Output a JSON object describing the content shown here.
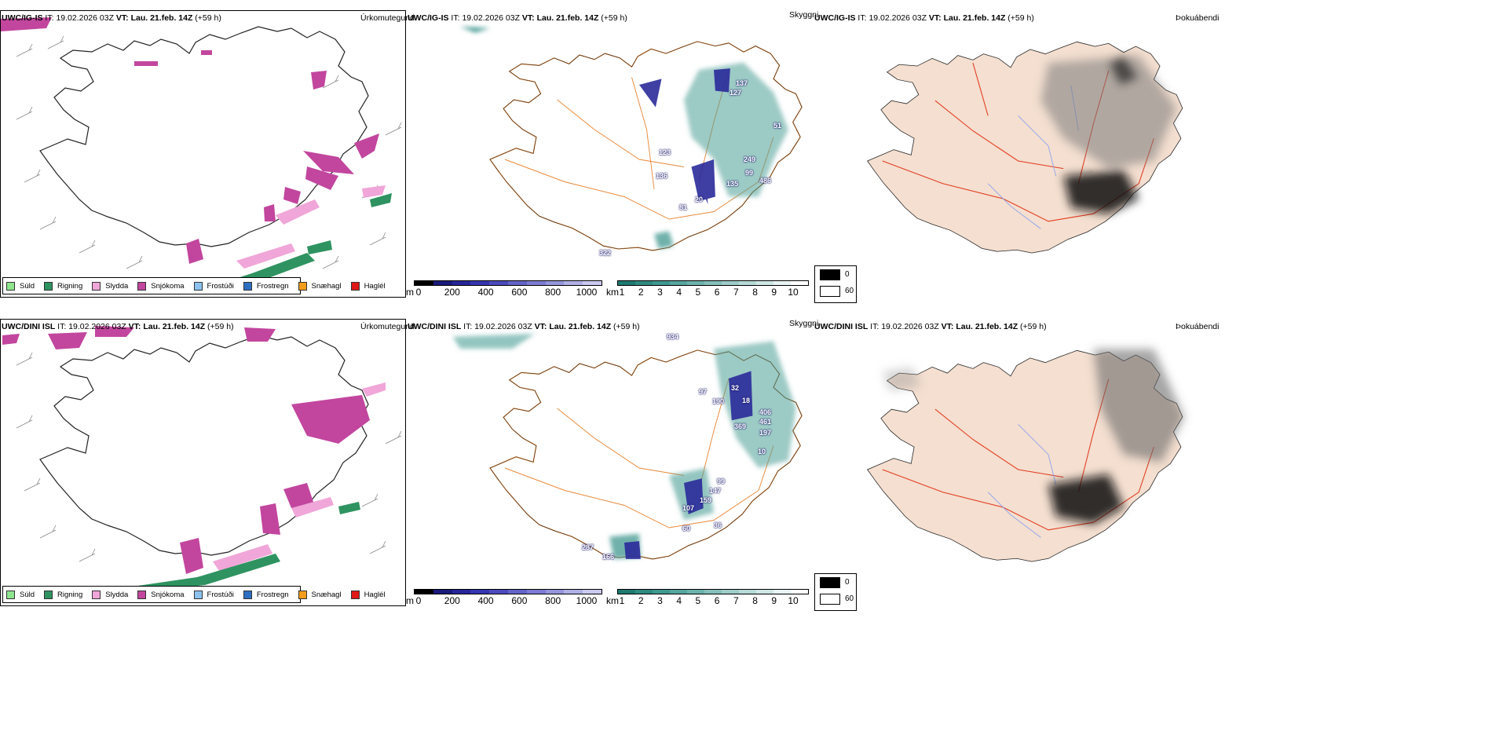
{
  "rows": [
    {
      "model": "UWC/IG-IS",
      "it_label": "IT:",
      "it_value": "19.02.2026 03Z",
      "vt_label": "VT:",
      "vt_value": "Lau. 21.feb. 14Z",
      "lead": "(+59 h)"
    },
    {
      "model": "UWC/DINI ISL",
      "it_label": "IT:",
      "it_value": "19.02.2026 03Z",
      "vt_label": "VT:",
      "vt_value": "Lau. 21.feb. 14Z",
      "lead": "(+59 h)"
    }
  ],
  "titles": {
    "precip_type": "Úrkomutegund",
    "visibility": "Skyggni",
    "fog": "Þokuábendi"
  },
  "precip_legend": [
    {
      "label": "Súld",
      "color": "#8ee58e"
    },
    {
      "label": "Rigning",
      "color": "#2e9360"
    },
    {
      "label": "Slydda",
      "color": "#f0a6d8"
    },
    {
      "label": "Snjókoma",
      "color": "#c2469e"
    },
    {
      "label": "Frostúði",
      "color": "#8dc2ee"
    },
    {
      "label": "Frostregn",
      "color": "#2d6fc2"
    },
    {
      "label": "Snæhagl",
      "color": "#f29c1c"
    },
    {
      "label": "Haglél",
      "color": "#e01818"
    }
  ],
  "cloud_base_bar": {
    "unit": "m",
    "ticks": [
      "0",
      "200",
      "400",
      "600",
      "800",
      "1000"
    ],
    "colors": [
      "#000000",
      "#1a1a7a",
      "#26269a",
      "#3535b0",
      "#4b4bbd",
      "#6464c8",
      "#7c7cd2",
      "#9696dc",
      "#b0b0e6",
      "#cacaf0"
    ]
  },
  "visibility_bar": {
    "unit": "km",
    "ticks": [
      "1",
      "2",
      "3",
      "4",
      "5",
      "6",
      "7",
      "8",
      "9",
      "10"
    ],
    "colors": [
      "#1e7a70",
      "#2f8a80",
      "#3f9890",
      "#56a69f",
      "#6db3ad",
      "#85c0bb",
      "#9ecdc9",
      "#b6dad7",
      "#cfe7e5",
      "#e8f4f3",
      "#ffffff"
    ]
  },
  "fog_legend": {
    "high_label": "0",
    "low_label": "60",
    "high_color": "#000000",
    "low_color": "#ffffff"
  },
  "vis_values": {
    "top": [
      "137",
      "127",
      "51",
      "249",
      "99",
      "135",
      "486",
      "136",
      "81",
      "20",
      "123",
      "322"
    ],
    "bottom": [
      "934",
      "97",
      "190",
      "32",
      "18",
      "406",
      "369",
      "461",
      "197",
      "10",
      "99",
      "147",
      "159",
      "36",
      "107",
      "60",
      "287",
      "166"
    ]
  },
  "colors": {
    "island_outline": "#222222",
    "road": "#e8893a",
    "fog_land": "#f4dfd0",
    "fog_road": "#e23b1e",
    "fog_river": "#8aa0f0",
    "rain": "#2e9360",
    "snow": "#c2469e",
    "sleet": "#f0a6d8",
    "teal": "#4d9e96",
    "navy": "#2a2a9a"
  }
}
